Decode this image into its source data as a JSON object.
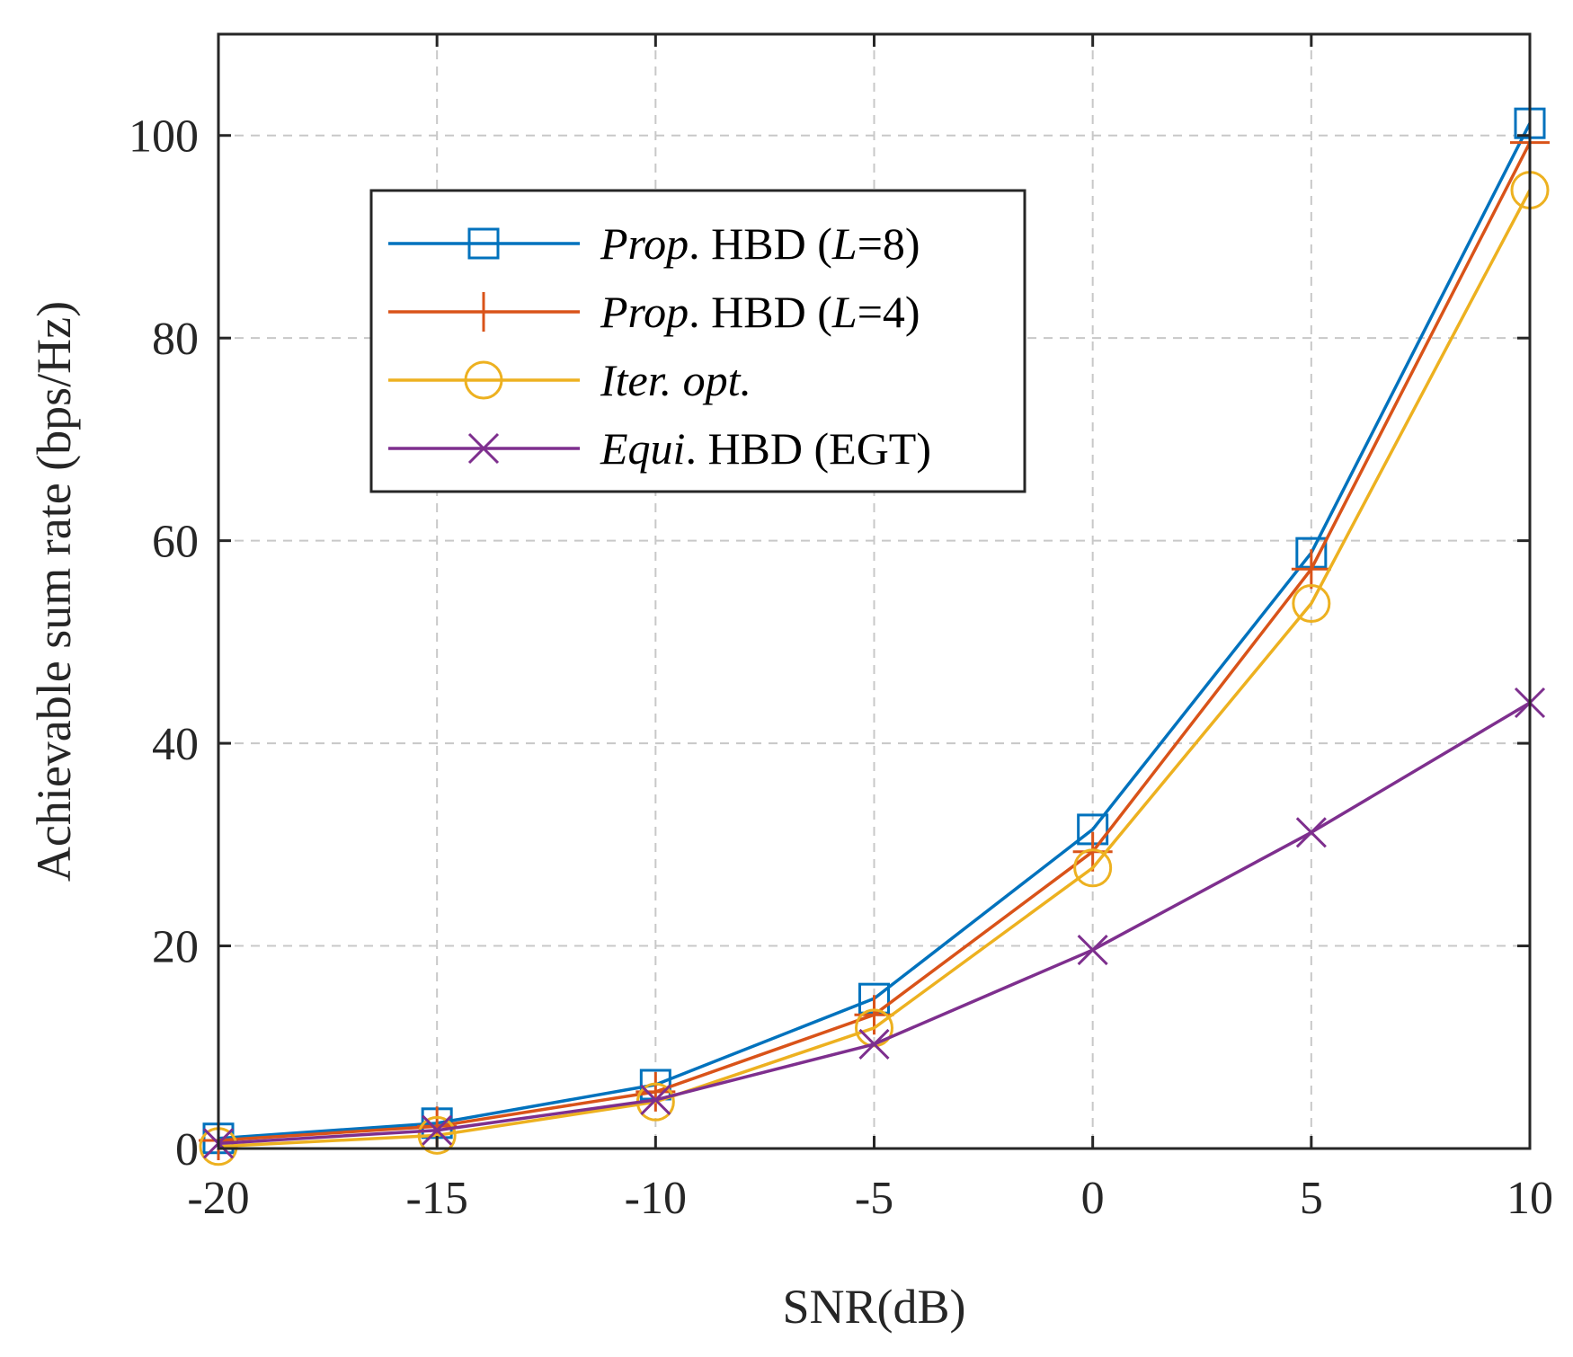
{
  "chart_data": {
    "type": "line",
    "title": "",
    "xlabel": "SNR(dB)",
    "ylabel": "Achievable sum rate (bps/Hz)",
    "x": [
      -20,
      -15,
      -10,
      -5,
      0,
      5,
      10
    ],
    "xlim": [
      -20,
      10
    ],
    "ylim": [
      0,
      110
    ],
    "xticks": [
      -20,
      -15,
      -10,
      -5,
      0,
      5,
      10
    ],
    "yticks": [
      0,
      20,
      40,
      60,
      80,
      100
    ],
    "xtick_labels": [
      "-20",
      "-15",
      "-10",
      "-5",
      "0",
      "5",
      "10"
    ],
    "ytick_labels": [
      "0",
      "20",
      "40",
      "60",
      "80",
      "100"
    ],
    "grid": true,
    "legend_position": "top-left",
    "series": [
      {
        "name": "Prop. HBD (L=8)",
        "label_parts": [
          {
            "text": "Prop",
            "italic": true
          },
          {
            "text": ". HBD (",
            "italic": false
          },
          {
            "text": "L",
            "italic": true
          },
          {
            "text": "=8)",
            "italic": false
          }
        ],
        "color": "#0072BD",
        "marker": "square",
        "values": [
          1.0,
          2.5,
          6.3,
          14.8,
          31.5,
          58.8,
          101.2
        ]
      },
      {
        "name": "Prop. HBD (L=4)",
        "label_parts": [
          {
            "text": "Prop",
            "italic": true
          },
          {
            "text": ". HBD (",
            "italic": false
          },
          {
            "text": "L",
            "italic": true
          },
          {
            "text": "=4)",
            "italic": false
          }
        ],
        "color": "#D95319",
        "marker": "plus",
        "values": [
          0.8,
          2.2,
          5.6,
          13.2,
          29.3,
          57.2,
          99.3
        ]
      },
      {
        "name": "Iter. opt.",
        "label_parts": [
          {
            "text": "Iter. opt.",
            "italic": true
          }
        ],
        "color": "#EDB120",
        "marker": "circle",
        "values": [
          0.2,
          1.3,
          4.6,
          11.9,
          27.7,
          53.8,
          94.6
        ]
      },
      {
        "name": "Equi. HBD (EGT)",
        "label_parts": [
          {
            "text": "Equi",
            "italic": true
          },
          {
            "text": ". HBD (EGT)",
            "italic": false
          }
        ],
        "color": "#7E2F8E",
        "marker": "x",
        "values": [
          0.5,
          1.8,
          4.8,
          10.3,
          19.6,
          31.2,
          44.0
        ]
      }
    ]
  }
}
